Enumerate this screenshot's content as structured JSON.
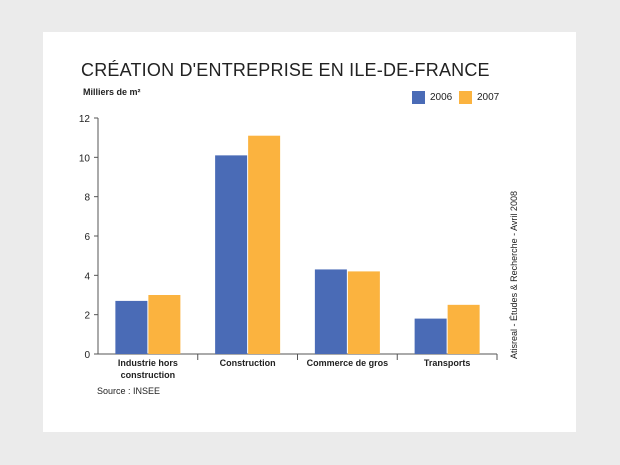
{
  "chart_data": {
    "type": "bar",
    "title": "CRÉATION D'ENTREPRISE EN ILE-DE-FRANCE",
    "ylabel": "Milliers de m²",
    "xlabel": "",
    "ylim": [
      0,
      12
    ],
    "yticks": [
      0,
      2,
      4,
      6,
      8,
      10,
      12
    ],
    "categories": [
      [
        "Industrie hors",
        "construction"
      ],
      [
        "Construction"
      ],
      [
        "Commerce de gros"
      ],
      [
        "Transports"
      ]
    ],
    "series": [
      {
        "name": "2006",
        "color": "#4a6bb6",
        "values": [
          2.7,
          10.1,
          4.3,
          1.8
        ]
      },
      {
        "name": "2007",
        "color": "#fbb33f",
        "values": [
          3.0,
          11.1,
          4.2,
          2.5
        ]
      }
    ],
    "legend_position": "top-right",
    "grid": false,
    "source": "Source : INSEE",
    "credit": "Atisreal - Études & Recherche - Avril 2008"
  }
}
